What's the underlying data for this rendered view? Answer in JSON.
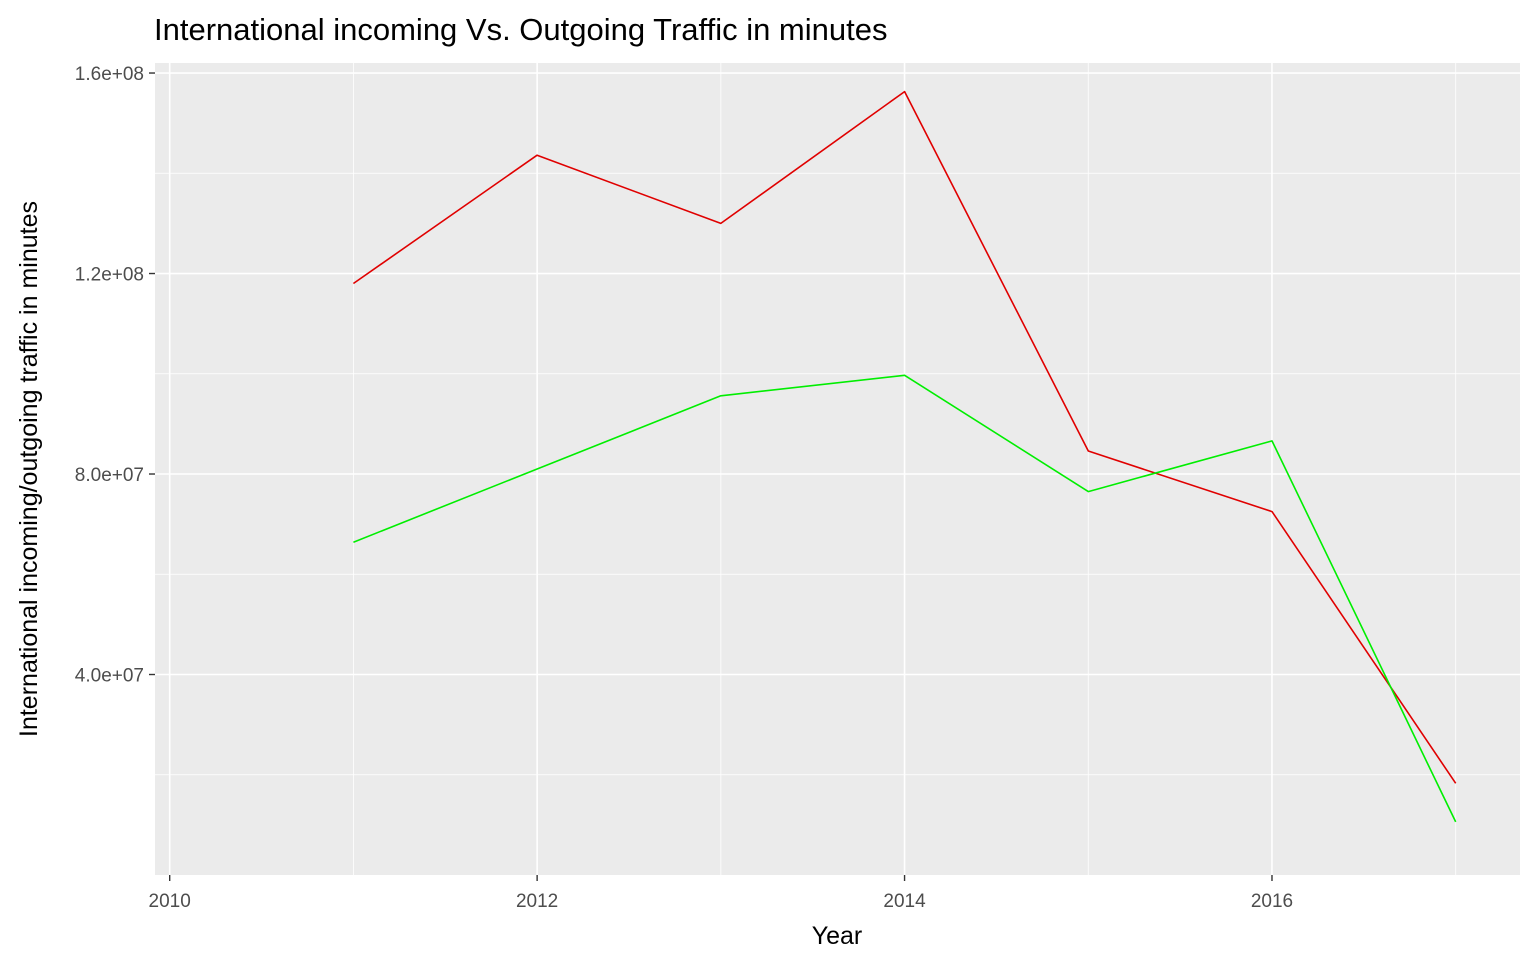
{
  "chart_data": {
    "type": "line",
    "title": "International incoming Vs. Outgoing Traffic in minutes",
    "xlabel": "Year",
    "ylabel": "International incoming/outgoing traffic in minutes",
    "xlim": [
      2009.92,
      2017.35
    ],
    "ylim": [
      0,
      162000000
    ],
    "x_ticks": [
      2010,
      2012,
      2014,
      2016
    ],
    "x_tick_labels": [
      "2010",
      "2012",
      "2014",
      "2016"
    ],
    "y_ticks": [
      40000000,
      80000000,
      120000000,
      160000000
    ],
    "y_tick_labels": [
      "4.0e+07",
      "8.0e+07",
      "1.2e+08",
      "1.6e+08"
    ],
    "grid": true,
    "legend": "none",
    "series": [
      {
        "color": "#e00000",
        "x": [
          2011,
          2012,
          2013,
          2014,
          2015,
          2016,
          2017
        ],
        "y": [
          118000000,
          143600000,
          130000000,
          156300000,
          84600000,
          72500000,
          18300000
        ]
      },
      {
        "color": "#00ee00",
        "x": [
          2011,
          2012,
          2013,
          2014,
          2015,
          2016,
          2017
        ],
        "y": [
          66400000,
          81000000,
          95600000,
          99700000,
          76500000,
          86600000,
          10600000
        ]
      }
    ]
  }
}
